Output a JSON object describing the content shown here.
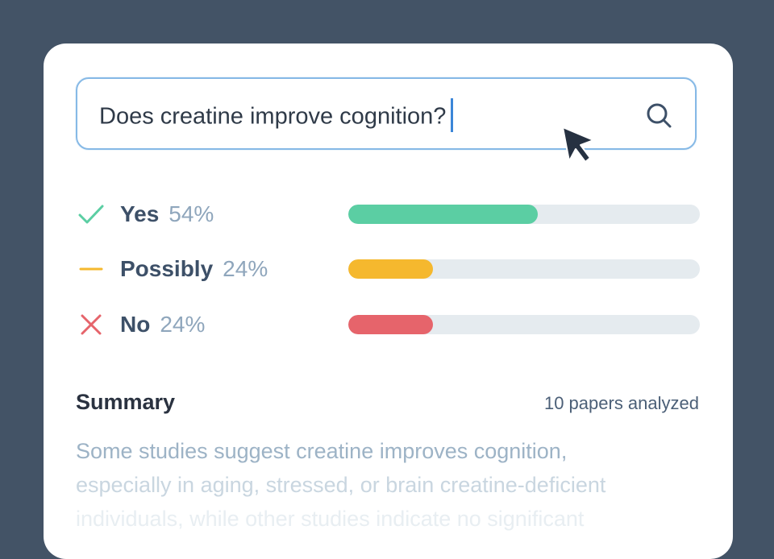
{
  "search": {
    "query": "Does creatine improve cognition?",
    "icon": "search-icon"
  },
  "results": [
    {
      "label": "Yes",
      "percent_text": "54%",
      "value": 54,
      "color": "#5bcea3",
      "icon": "check-icon"
    },
    {
      "label": "Possibly",
      "percent_text": "24%",
      "value": 24,
      "color": "#f5b82e",
      "icon": "dash-icon"
    },
    {
      "label": "No",
      "percent_text": "24%",
      "value": 24,
      "color": "#e6646b",
      "icon": "cross-icon"
    }
  ],
  "summary": {
    "title": "Summary",
    "papers": "10 papers analyzed",
    "line1": "Some studies suggest creatine improves cognition,",
    "line2": "especially in aging, stressed, or brain creatine-deficient",
    "line3": "individuals, while other studies indicate no significant"
  },
  "colors": {
    "background": "#435366",
    "search_border": "#86b9e6",
    "caret": "#3b86d8",
    "track": "#e5ebef"
  }
}
